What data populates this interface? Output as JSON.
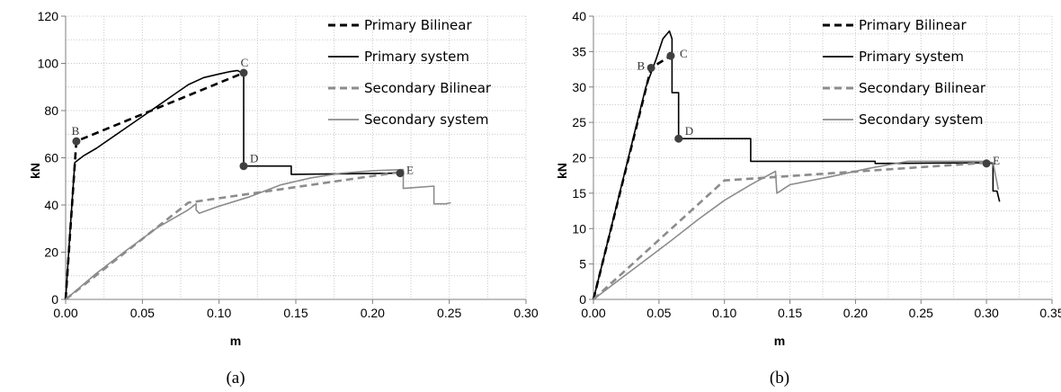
{
  "styles": {
    "primary_color": "#000000",
    "secondary_color": "#8c8c8c",
    "marker_color": "#404040",
    "grid_color": "#c8c8c8"
  },
  "chart_data": [
    {
      "type": "line",
      "caption": "(a)",
      "xlabel": "m",
      "ylabel": "kN",
      "xlim": [
        0,
        0.3
      ],
      "ylim": [
        0,
        120
      ],
      "xticks": [
        0,
        0.05,
        0.1,
        0.15,
        0.2,
        0.25,
        0.3
      ],
      "xtick_labels": [
        "0.00",
        "0.05",
        "0.10",
        "0.15",
        "0.20",
        "0.25",
        "0.30"
      ],
      "yticks": [
        0,
        20,
        40,
        60,
        80,
        100,
        120
      ],
      "ytick_labels": [
        "0",
        "20",
        "40",
        "60",
        "80",
        "100",
        "120"
      ],
      "grid": "dotted, major and minor",
      "legend_position": "right",
      "series": [
        {
          "name": "Primary Bilinear",
          "style": "dashed",
          "color": "#000000",
          "x": [
            0,
            0.007,
            0.116
          ],
          "y": [
            0,
            67,
            96
          ]
        },
        {
          "name": "Primary system",
          "style": "solid",
          "color": "#000000",
          "x": [
            0,
            0.003,
            0.006,
            0.009,
            0.012,
            0.02,
            0.03,
            0.04,
            0.05,
            0.06,
            0.07,
            0.08,
            0.09,
            0.1,
            0.107,
            0.112,
            0.114,
            0.116,
            0.116,
            0.147,
            0.147,
            0.218
          ],
          "y": [
            0,
            30,
            58,
            59.5,
            61,
            64,
            68.5,
            73,
            77.5,
            82,
            86.5,
            91,
            94,
            95.5,
            96.5,
            97,
            96.3,
            96,
            56.5,
            56.5,
            53,
            53.5
          ]
        },
        {
          "name": "Secondary Bilinear",
          "style": "dashed",
          "color": "#8c8c8c",
          "x": [
            0,
            0.08,
            0.218
          ],
          "y": [
            0,
            41,
            54
          ]
        },
        {
          "name": "Secondary system",
          "style": "solid",
          "color": "#8c8c8c",
          "x": [
            0,
            0.02,
            0.04,
            0.06,
            0.08,
            0.085,
            0.085,
            0.087,
            0.1,
            0.12,
            0.14,
            0.16,
            0.18,
            0.2,
            0.22,
            0.22,
            0.24,
            0.24,
            0.248,
            0.251
          ],
          "y": [
            0,
            11,
            21,
            30.5,
            38,
            40.5,
            38,
            36.5,
            39.5,
            43.5,
            48.5,
            51.5,
            53.5,
            54.5,
            55,
            47,
            48,
            40.5,
            40.5,
            41
          ]
        }
      ],
      "points": [
        {
          "label": "B",
          "x": 0.007,
          "y": 67
        },
        {
          "label": "C",
          "x": 0.116,
          "y": 96
        },
        {
          "label": "D",
          "x": 0.116,
          "y": 56.5
        },
        {
          "label": "E",
          "x": 0.218,
          "y": 53.5
        }
      ]
    },
    {
      "type": "line",
      "caption": "(b)",
      "xlabel": "m",
      "ylabel": "kN",
      "xlim": [
        0,
        0.35
      ],
      "ylim": [
        0,
        40
      ],
      "xticks": [
        0,
        0.05,
        0.1,
        0.15,
        0.2,
        0.25,
        0.3,
        0.35
      ],
      "xtick_labels": [
        "0.00",
        "0.05",
        "0.10",
        "0.15",
        "0.20",
        "0.25",
        "0.30",
        "0.35"
      ],
      "yticks": [
        0,
        5,
        10,
        15,
        20,
        25,
        30,
        35,
        40
      ],
      "ytick_labels": [
        "0",
        "5",
        "10",
        "15",
        "20",
        "25",
        "30",
        "35",
        "40"
      ],
      "grid": "dotted, major and minor",
      "legend_position": "right",
      "series": [
        {
          "name": "Primary Bilinear",
          "style": "dashed",
          "color": "#000000",
          "x": [
            0,
            0.044,
            0.059
          ],
          "y": [
            0,
            32.7,
            34.4
          ]
        },
        {
          "name": "Primary system",
          "style": "solid",
          "color": "#000000",
          "x": [
            0,
            0.01,
            0.02,
            0.03,
            0.04,
            0.048,
            0.053,
            0.058,
            0.06,
            0.06,
            0.065,
            0.065,
            0.12,
            0.12,
            0.215,
            0.215,
            0.3,
            0.305,
            0.305,
            0.308,
            0.31
          ],
          "y": [
            0,
            7.5,
            15,
            22.5,
            30,
            34,
            36.8,
            37.9,
            36.8,
            29.2,
            29.2,
            22.7,
            22.7,
            19.5,
            19.5,
            19.2,
            19.3,
            19.2,
            15.3,
            15.3,
            13.8
          ]
        },
        {
          "name": "Secondary Bilinear",
          "style": "dashed",
          "color": "#8c8c8c",
          "x": [
            0,
            0.1,
            0.3
          ],
          "y": [
            0,
            16.8,
            19.3
          ]
        },
        {
          "name": "Secondary system",
          "style": "solid",
          "color": "#8c8c8c",
          "x": [
            0,
            0.02,
            0.04,
            0.06,
            0.08,
            0.1,
            0.12,
            0.139,
            0.14,
            0.15,
            0.18,
            0.21,
            0.24,
            0.27,
            0.3,
            0.305,
            0.308,
            0.309
          ],
          "y": [
            0,
            2.8,
            5.6,
            8.4,
            11.3,
            14,
            16.2,
            18.1,
            15,
            16.2,
            17.3,
            18.5,
            19.5,
            19.5,
            19.5,
            19.3,
            16.5,
            15.5
          ]
        }
      ],
      "points": [
        {
          "label": "B",
          "x": 0.044,
          "y": 32.7
        },
        {
          "label": "C",
          "x": 0.059,
          "y": 34.4
        },
        {
          "label": "D",
          "x": 0.065,
          "y": 22.7
        },
        {
          "label": "E",
          "x": 0.3,
          "y": 19.2
        }
      ]
    }
  ]
}
